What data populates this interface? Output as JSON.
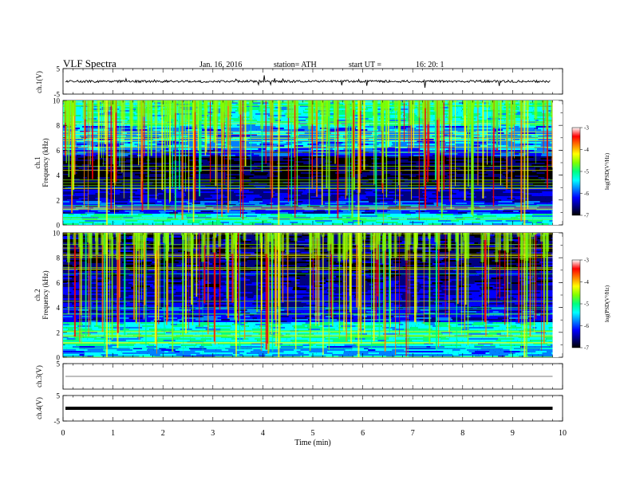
{
  "header": {
    "title": "VLF  Spectra",
    "date": "Jan. 16, 2016",
    "station": "station= ATH",
    "start_label": "start  UT  =",
    "start_time": "16: 20: 1"
  },
  "chart_data": {
    "type": "heatmap",
    "x_axis": {
      "label": "Time  (min)",
      "range": [
        0,
        10
      ],
      "ticks": [
        0,
        1,
        2,
        3,
        4,
        5,
        6,
        7,
        8,
        9,
        10
      ],
      "data_end_min": 9.8
    },
    "panels": [
      {
        "id": "ch1-waveform",
        "kind": "waveform",
        "ylabel": "ch.1(V)",
        "ylim": [
          -5,
          5
        ],
        "yticks": [
          5,
          -5
        ],
        "trace_level": 0,
        "trace_color": "#000000"
      },
      {
        "id": "ch1-spectrogram",
        "kind": "spectrogram",
        "ylabel_top": "ch.1",
        "ylabel": "Frequency  (kHz)",
        "ylim": [
          0,
          10
        ],
        "yticks": [
          0,
          2,
          4,
          6,
          8,
          10
        ],
        "colorbar": {
          "label": "log(PSD(V²/Hz)",
          "range": [
            -7,
            -3
          ],
          "ticks": [
            -3,
            -4,
            -5,
            -6,
            -7
          ]
        }
      },
      {
        "id": "ch2-spectrogram",
        "kind": "spectrogram",
        "ylabel_top": "ch.2",
        "ylabel": "Frequency  (kHz)",
        "ylim": [
          0,
          10
        ],
        "yticks": [
          0,
          2,
          4,
          6,
          8,
          10
        ],
        "colorbar": {
          "label": "log(PSD(V²/Hz)",
          "range": [
            -7,
            -3
          ],
          "ticks": [
            -3,
            -4,
            -5,
            -6,
            -7
          ]
        }
      },
      {
        "id": "ch3-waveform",
        "kind": "waveform",
        "ylabel": "ch.3(V)",
        "ylim": [
          -5,
          5
        ],
        "yticks": [
          5
        ],
        "trace_level": 0,
        "trace_color": "#000000"
      },
      {
        "id": "ch4-waveform",
        "kind": "waveform",
        "ylabel": "ch.4(V)",
        "ylim": [
          -5,
          5
        ],
        "yticks": [
          5,
          -5
        ],
        "trace_level": 0,
        "trace_color": "#000000"
      }
    ],
    "colormap": [
      "#000000",
      "#000080",
      "#0000ff",
      "#0080ff",
      "#00ffff",
      "#00ff80",
      "#80ff00",
      "#ffff00",
      "#ff8000",
      "#ff0000",
      "#ffffff"
    ]
  }
}
